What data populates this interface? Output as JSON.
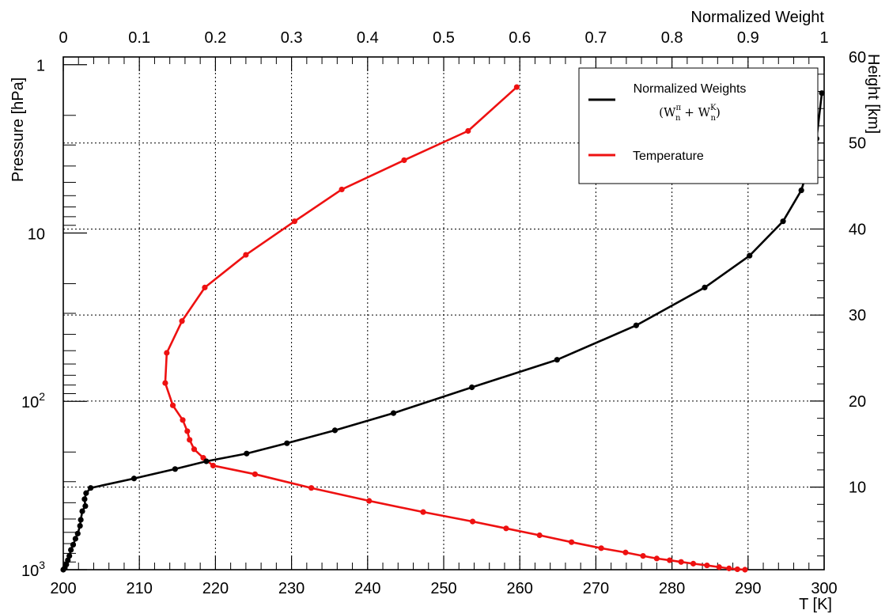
{
  "chart_data": {
    "type": "line",
    "axes": {
      "bottom": {
        "label": "T [K]",
        "range": [
          200,
          300
        ],
        "ticks": [
          200,
          210,
          220,
          230,
          240,
          250,
          260,
          270,
          280,
          290,
          300
        ]
      },
      "top": {
        "label": "Normalized Weight",
        "range": [
          0,
          1
        ],
        "ticks": [
          "0",
          "0.1",
          "0.2",
          "0.3",
          "0.4",
          "0.5",
          "0.6",
          "0.7",
          "0.8",
          "0.9",
          "1"
        ]
      },
      "left": {
        "label": "Pressure [hPa]",
        "scale": "log",
        "reversed": true,
        "range": [
          1000,
          0.9
        ],
        "tick_labels": [
          "1",
          "10",
          "10",
          "10"
        ],
        "tick_exponents": [
          "",
          "",
          "2",
          "3"
        ]
      },
      "right": {
        "label": "Height [km]",
        "range": [
          0.4,
          60
        ],
        "ticks": [
          10,
          20,
          30,
          40,
          50,
          60
        ]
      }
    },
    "grid": true,
    "legend": {
      "position": "top-right",
      "entries": [
        {
          "label": "Normalized Weights",
          "formula_text": "(W",
          "formula_parts": [
            "π",
            "n",
            " + W",
            "K",
            "n",
            ")"
          ],
          "color": "#000000"
        },
        {
          "label": "Temperature",
          "color": "#ee1111"
        }
      ]
    },
    "series": [
      {
        "name": "Temperature",
        "color": "#ee1111",
        "x_axis": "bottom",
        "y_axis": "right",
        "points": [
          [
            259.6,
            56.5
          ],
          [
            253.2,
            51.4
          ],
          [
            244.8,
            48.0
          ],
          [
            236.6,
            44.6
          ],
          [
            230.4,
            40.9
          ],
          [
            224.0,
            37.0
          ],
          [
            218.6,
            33.2
          ],
          [
            215.6,
            29.3
          ],
          [
            213.6,
            25.6
          ],
          [
            213.4,
            22.1
          ],
          [
            214.4,
            19.5
          ],
          [
            215.7,
            17.8
          ],
          [
            216.3,
            16.5
          ],
          [
            216.6,
            15.5
          ],
          [
            217.2,
            14.4
          ],
          [
            218.4,
            13.4
          ],
          [
            219.7,
            12.5
          ],
          [
            225.2,
            11.5
          ],
          [
            232.6,
            9.9
          ],
          [
            240.2,
            8.4
          ],
          [
            247.3,
            7.1
          ],
          [
            253.8,
            6.0
          ],
          [
            258.2,
            5.2
          ],
          [
            262.6,
            4.4
          ],
          [
            266.8,
            3.6
          ],
          [
            270.7,
            2.9
          ],
          [
            273.9,
            2.4
          ],
          [
            276.2,
            2.0
          ],
          [
            278.0,
            1.7
          ],
          [
            279.7,
            1.5
          ],
          [
            281.2,
            1.3
          ],
          [
            282.8,
            1.1
          ],
          [
            284.6,
            0.9
          ],
          [
            286.2,
            0.7
          ],
          [
            287.5,
            0.55
          ],
          [
            288.6,
            0.45
          ],
          [
            289.6,
            0.4
          ]
        ]
      },
      {
        "name": "Normalized Weights",
        "color": "#000000",
        "x_axis": "top",
        "y_axis": "right",
        "points": [
          [
            0.997,
            55.8
          ],
          [
            0.99,
            50.5
          ],
          [
            0.98,
            47.4
          ],
          [
            0.97,
            44.5
          ],
          [
            0.946,
            40.9
          ],
          [
            0.902,
            36.9
          ],
          [
            0.843,
            33.2
          ],
          [
            0.753,
            28.8
          ],
          [
            0.649,
            24.8
          ],
          [
            0.537,
            21.6
          ],
          [
            0.434,
            18.6
          ],
          [
            0.357,
            16.6
          ],
          [
            0.294,
            15.1
          ],
          [
            0.241,
            13.9
          ],
          [
            0.188,
            13.0
          ],
          [
            0.147,
            12.1
          ],
          [
            0.093,
            11.0
          ],
          [
            0.036,
            9.9
          ],
          [
            0.03,
            9.3
          ],
          [
            0.028,
            8.6
          ],
          [
            0.029,
            7.8
          ],
          [
            0.025,
            7.2
          ],
          [
            0.023,
            6.2
          ],
          [
            0.022,
            5.5
          ],
          [
            0.019,
            4.6
          ],
          [
            0.016,
            4.0
          ],
          [
            0.013,
            3.3
          ],
          [
            0.01,
            2.7
          ],
          [
            0.008,
            2.0
          ],
          [
            0.006,
            1.5
          ],
          [
            0.004,
            1.0
          ],
          [
            0.002,
            0.6
          ],
          [
            0.0,
            0.4
          ]
        ]
      }
    ]
  }
}
